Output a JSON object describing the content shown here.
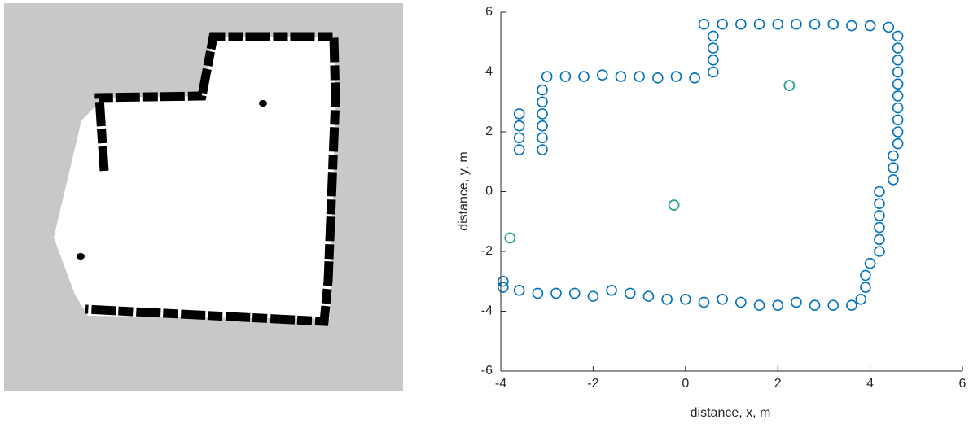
{
  "chart_data": {
    "type": "scatter",
    "xlabel": "distance, x, m",
    "ylabel": "distance, y, m",
    "xlim": [
      -4,
      6
    ],
    "ylim": [
      -6,
      6
    ],
    "xticks": [
      -4,
      -2,
      0,
      2,
      4,
      6
    ],
    "yticks": [
      -6,
      -4,
      -2,
      0,
      2,
      4,
      6
    ],
    "series": [
      {
        "color": "#0072bd",
        "x": [
          0.4,
          0.8,
          1.2,
          1.6,
          2.0,
          2.4,
          2.8,
          3.2,
          3.6,
          4.0,
          4.4,
          0.6,
          0.6,
          0.6,
          0.6,
          -3.0,
          -2.6,
          -2.2,
          -1.8,
          -1.4,
          -1.0,
          -0.6,
          -0.2,
          0.2,
          -3.1,
          -3.1,
          -3.1,
          -3.1,
          -3.1,
          -3.1,
          -3.6,
          -3.6,
          -3.6,
          -3.6,
          4.6,
          4.6,
          4.6,
          4.6,
          4.6,
          4.6,
          4.6,
          4.6,
          4.6,
          4.6,
          4.5,
          4.5,
          4.5,
          4.2,
          4.2,
          4.2,
          4.2,
          4.2,
          4.2,
          4.0,
          3.9,
          3.9,
          3.8,
          -3.6,
          -3.2,
          -2.8,
          -2.4,
          -2.0,
          -1.6,
          -1.2,
          -0.8,
          -0.4,
          0.0,
          0.4,
          0.8,
          1.2,
          1.6,
          2.0,
          2.4,
          2.8,
          3.2,
          3.6,
          -3.8,
          -3.95,
          -3.95,
          2.25,
          -0.25
        ],
        "y": [
          5.6,
          5.6,
          5.6,
          5.6,
          5.6,
          5.6,
          5.6,
          5.6,
          5.55,
          5.55,
          5.5,
          4.0,
          4.4,
          4.8,
          5.2,
          3.85,
          3.85,
          3.85,
          3.9,
          3.85,
          3.85,
          3.8,
          3.85,
          3.8,
          3.4,
          3.0,
          2.6,
          2.2,
          1.8,
          1.4,
          2.6,
          2.2,
          1.8,
          1.4,
          5.2,
          4.8,
          4.4,
          4.0,
          3.6,
          3.2,
          2.8,
          2.4,
          2.0,
          1.6,
          1.2,
          0.8,
          0.4,
          0.0,
          -0.4,
          -0.8,
          -1.2,
          -1.6,
          -2.0,
          -2.4,
          -2.8,
          -3.2,
          -3.6,
          -3.3,
          -3.4,
          -3.4,
          -3.4,
          -3.5,
          -3.3,
          -3.4,
          -3.5,
          -3.6,
          -3.6,
          -3.7,
          -3.6,
          -3.7,
          -3.8,
          -3.8,
          -3.7,
          -3.8,
          -3.8,
          -3.8,
          -1.55,
          -3.0,
          -3.2,
          3.55,
          -0.45
        ]
      },
      {
        "color": "#2ca58d",
        "x": [
          2.25,
          -0.25,
          -3.8
        ],
        "y": [
          3.55,
          -0.45,
          -1.55
        ]
      }
    ]
  }
}
